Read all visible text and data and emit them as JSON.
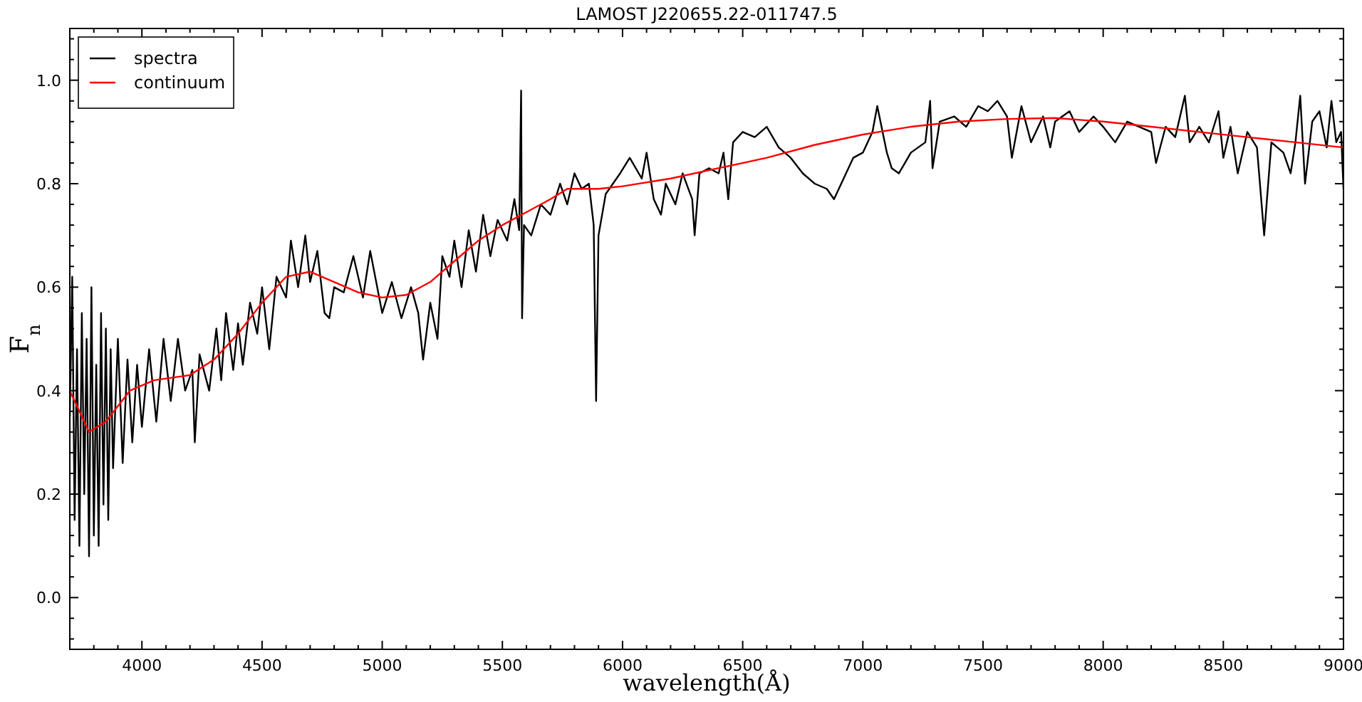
{
  "chart_data": {
    "type": "line",
    "title": "LAMOST J220655.22-011747.5",
    "xlabel": "wavelength(Å)",
    "ylabel": "F$_{n}$",
    "xlim": [
      3700,
      9000
    ],
    "ylim": [
      -0.1,
      1.1
    ],
    "xticks": [
      {
        "value": 3700,
        "label": null
      },
      {
        "value": 3800,
        "label": null
      },
      {
        "value": 3900,
        "label": null
      },
      4000,
      {
        "value": 4100,
        "label": null
      },
      {
        "value": 4200,
        "label": null
      },
      {
        "value": 4300,
        "label": null
      },
      {
        "value": 4400,
        "label": null
      },
      4500,
      {
        "value": 4600,
        "label": null
      },
      {
        "value": 4700,
        "label": null
      },
      {
        "value": 4800,
        "label": null
      },
      {
        "value": 4900,
        "label": null
      },
      5000,
      {
        "value": 5100,
        "label": null
      },
      {
        "value": 5200,
        "label": null
      },
      {
        "value": 5300,
        "label": null
      },
      {
        "value": 5400,
        "label": null
      },
      5500,
      {
        "value": 5600,
        "label": null
      },
      {
        "value": 5700,
        "label": null
      },
      {
        "value": 5800,
        "label": null
      },
      {
        "value": 5900,
        "label": null
      },
      6000,
      {
        "value": 6100,
        "label": null
      },
      {
        "value": 6200,
        "label": null
      },
      {
        "value": 6300,
        "label": null
      },
      {
        "value": 6400,
        "label": null
      },
      6500,
      {
        "value": 6600,
        "label": null
      },
      {
        "value": 6700,
        "label": null
      },
      {
        "value": 6800,
        "label": null
      },
      {
        "value": 6900,
        "label": null
      },
      7000,
      {
        "value": 7100,
        "label": null
      },
      {
        "value": 7200,
        "label": null
      },
      {
        "value": 7300,
        "label": null
      },
      {
        "value": 7400,
        "label": null
      },
      7500,
      {
        "value": 7600,
        "label": null
      },
      {
        "value": 7700,
        "label": null
      },
      {
        "value": 7800,
        "label": null
      },
      {
        "value": 7900,
        "label": null
      },
      8000,
      {
        "value": 8100,
        "label": null
      },
      {
        "value": 8200,
        "label": null
      },
      {
        "value": 8300,
        "label": null
      },
      {
        "value": 8400,
        "label": null
      },
      8500,
      {
        "value": 8600,
        "label": null
      },
      {
        "value": 8700,
        "label": null
      },
      {
        "value": 8800,
        "label": null
      },
      {
        "value": 8900,
        "label": null
      },
      9000
    ],
    "yticks": [
      {
        "value": -0.08,
        "label": null
      },
      {
        "value": -0.04,
        "label": null
      },
      {
        "value": 0,
        "label": "0.0"
      },
      {
        "value": 0.04,
        "label": null
      },
      {
        "value": 0.08,
        "label": null
      },
      {
        "value": 0.12,
        "label": null
      },
      {
        "value": 0.16,
        "label": null
      },
      0.2,
      {
        "value": 0.24,
        "label": null
      },
      {
        "value": 0.28,
        "label": null
      },
      {
        "value": 0.32,
        "label": null
      },
      {
        "value": 0.36,
        "label": null
      },
      0.4,
      {
        "value": 0.44,
        "label": null
      },
      {
        "value": 0.48,
        "label": null
      },
      {
        "value": 0.52,
        "label": null
      },
      {
        "value": 0.56,
        "label": null
      },
      0.6,
      {
        "value": 0.64,
        "label": null
      },
      {
        "value": 0.68,
        "label": null
      },
      {
        "value": 0.72,
        "label": null
      },
      {
        "value": 0.76,
        "label": null
      },
      0.8,
      {
        "value": 0.84,
        "label": null
      },
      {
        "value": 0.88,
        "label": null
      },
      {
        "value": 0.92,
        "label": null
      },
      {
        "value": 0.96,
        "label": null
      },
      {
        "value": 1,
        "label": "1.0"
      },
      {
        "value": 1.04,
        "label": null
      },
      {
        "value": 1.08,
        "label": null
      }
    ],
    "grid": false,
    "legend": "top left",
    "line_style": "solid",
    "marker": "none",
    "series": [
      {
        "name": "spectra",
        "color": "#000000",
        "x": [
          3700,
          3710,
          3720,
          3730,
          3740,
          3750,
          3760,
          3770,
          3780,
          3790,
          3800,
          3810,
          3820,
          3830,
          3840,
          3850,
          3860,
          3870,
          3880,
          3900,
          3920,
          3940,
          3960,
          3980,
          4000,
          4030,
          4060,
          4090,
          4120,
          4150,
          4180,
          4210,
          4220,
          4240,
          4280,
          4310,
          4330,
          4350,
          4380,
          4400,
          4420,
          4450,
          4480,
          4500,
          4530,
          4560,
          4600,
          4620,
          4650,
          4680,
          4700,
          4730,
          4760,
          4780,
          4800,
          4840,
          4880,
          4920,
          4950,
          5000,
          5040,
          5080,
          5120,
          5150,
          5170,
          5200,
          5230,
          5250,
          5280,
          5300,
          5330,
          5360,
          5390,
          5420,
          5450,
          5480,
          5520,
          5550,
          5570,
          5578,
          5582,
          5590,
          5620,
          5660,
          5700,
          5740,
          5770,
          5800,
          5830,
          5860,
          5880,
          5890,
          5900,
          5930,
          5960,
          5990,
          6030,
          6080,
          6100,
          6130,
          6160,
          6180,
          6220,
          6250,
          6290,
          6300,
          6320,
          6360,
          6400,
          6420,
          6440,
          6460,
          6500,
          6550,
          6600,
          6650,
          6700,
          6750,
          6800,
          6850,
          6880,
          6920,
          6960,
          7000,
          7040,
          7060,
          7100,
          7120,
          7150,
          7200,
          7260,
          7280,
          7290,
          7320,
          7380,
          7430,
          7480,
          7520,
          7560,
          7600,
          7620,
          7660,
          7700,
          7750,
          7780,
          7800,
          7860,
          7900,
          7960,
          8000,
          8050,
          8100,
          8150,
          8200,
          8220,
          8260,
          8300,
          8340,
          8360,
          8400,
          8440,
          8480,
          8500,
          8530,
          8560,
          8600,
          8640,
          8670,
          8700,
          8750,
          8780,
          8800,
          8820,
          8840,
          8870,
          8900,
          8930,
          8950,
          8970,
          8990,
          9000
        ],
        "values": [
          0.35,
          0.62,
          0.15,
          0.48,
          0.1,
          0.55,
          0.2,
          0.5,
          0.08,
          0.6,
          0.12,
          0.45,
          0.1,
          0.55,
          0.18,
          0.52,
          0.15,
          0.48,
          0.25,
          0.5,
          0.26,
          0.46,
          0.3,
          0.45,
          0.33,
          0.48,
          0.34,
          0.5,
          0.38,
          0.5,
          0.4,
          0.44,
          0.3,
          0.47,
          0.4,
          0.52,
          0.42,
          0.55,
          0.44,
          0.53,
          0.45,
          0.57,
          0.51,
          0.6,
          0.48,
          0.62,
          0.58,
          0.69,
          0.6,
          0.7,
          0.61,
          0.67,
          0.55,
          0.54,
          0.6,
          0.59,
          0.66,
          0.58,
          0.67,
          0.55,
          0.61,
          0.54,
          0.6,
          0.55,
          0.46,
          0.57,
          0.5,
          0.66,
          0.62,
          0.69,
          0.6,
          0.71,
          0.63,
          0.74,
          0.66,
          0.73,
          0.69,
          0.77,
          0.71,
          0.98,
          0.54,
          0.72,
          0.7,
          0.76,
          0.74,
          0.8,
          0.76,
          0.82,
          0.79,
          0.8,
          0.72,
          0.38,
          0.7,
          0.78,
          0.8,
          0.82,
          0.85,
          0.81,
          0.86,
          0.77,
          0.74,
          0.8,
          0.76,
          0.82,
          0.77,
          0.7,
          0.82,
          0.83,
          0.82,
          0.86,
          0.77,
          0.88,
          0.9,
          0.89,
          0.91,
          0.87,
          0.85,
          0.82,
          0.8,
          0.79,
          0.77,
          0.81,
          0.85,
          0.86,
          0.9,
          0.95,
          0.86,
          0.83,
          0.82,
          0.86,
          0.88,
          0.96,
          0.83,
          0.92,
          0.93,
          0.91,
          0.95,
          0.94,
          0.96,
          0.93,
          0.85,
          0.95,
          0.88,
          0.93,
          0.87,
          0.92,
          0.94,
          0.9,
          0.93,
          0.91,
          0.88,
          0.92,
          0.91,
          0.9,
          0.84,
          0.91,
          0.89,
          0.97,
          0.88,
          0.91,
          0.88,
          0.94,
          0.85,
          0.91,
          0.82,
          0.9,
          0.87,
          0.7,
          0.88,
          0.86,
          0.82,
          0.88,
          0.97,
          0.8,
          0.92,
          0.94,
          0.87,
          0.96,
          0.88,
          0.9,
          0.79
        ]
      },
      {
        "name": "continuum",
        "color": "#ff0000",
        "x": [
          3700,
          3780,
          3850,
          3950,
          4050,
          4200,
          4300,
          4400,
          4500,
          4600,
          4700,
          4800,
          4900,
          5000,
          5100,
          5200,
          5300,
          5400,
          5500,
          5600,
          5700,
          5770,
          5900,
          6000,
          6200,
          6400,
          6600,
          6800,
          7000,
          7200,
          7400,
          7600,
          7800,
          8000,
          8200,
          8400,
          8600,
          8800,
          9000
        ],
        "values": [
          0.4,
          0.32,
          0.34,
          0.4,
          0.42,
          0.43,
          0.46,
          0.51,
          0.57,
          0.62,
          0.63,
          0.61,
          0.59,
          0.58,
          0.585,
          0.61,
          0.65,
          0.69,
          0.72,
          0.745,
          0.77,
          0.79,
          0.79,
          0.795,
          0.81,
          0.83,
          0.85,
          0.875,
          0.895,
          0.91,
          0.92,
          0.925,
          0.927,
          0.92,
          0.91,
          0.9,
          0.89,
          0.88,
          0.87
        ]
      }
    ]
  }
}
